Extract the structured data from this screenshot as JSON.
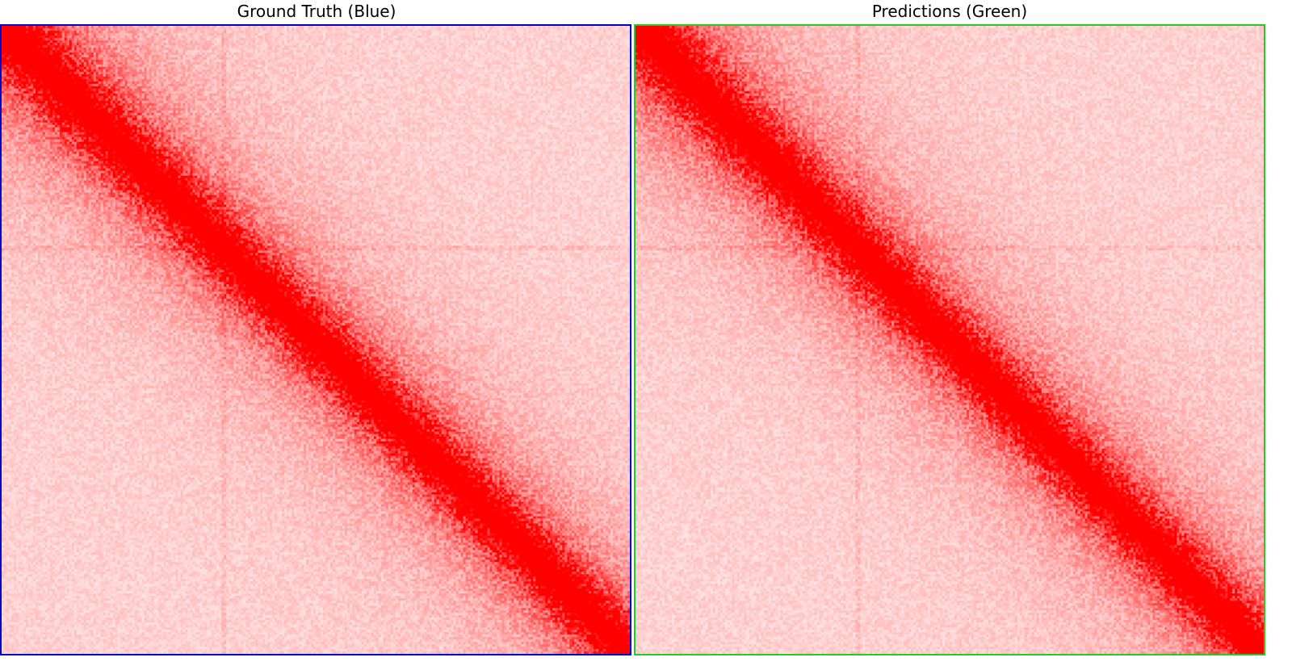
{
  "panels": {
    "left": {
      "title": "Ground Truth (Blue)",
      "border_color": "#0000cc"
    },
    "right": {
      "title": "Predictions (Green)",
      "border_color": "#22cc22"
    }
  },
  "colors": {
    "matrix_high": "#ff0000",
    "matrix_low": "#ffffff"
  }
}
